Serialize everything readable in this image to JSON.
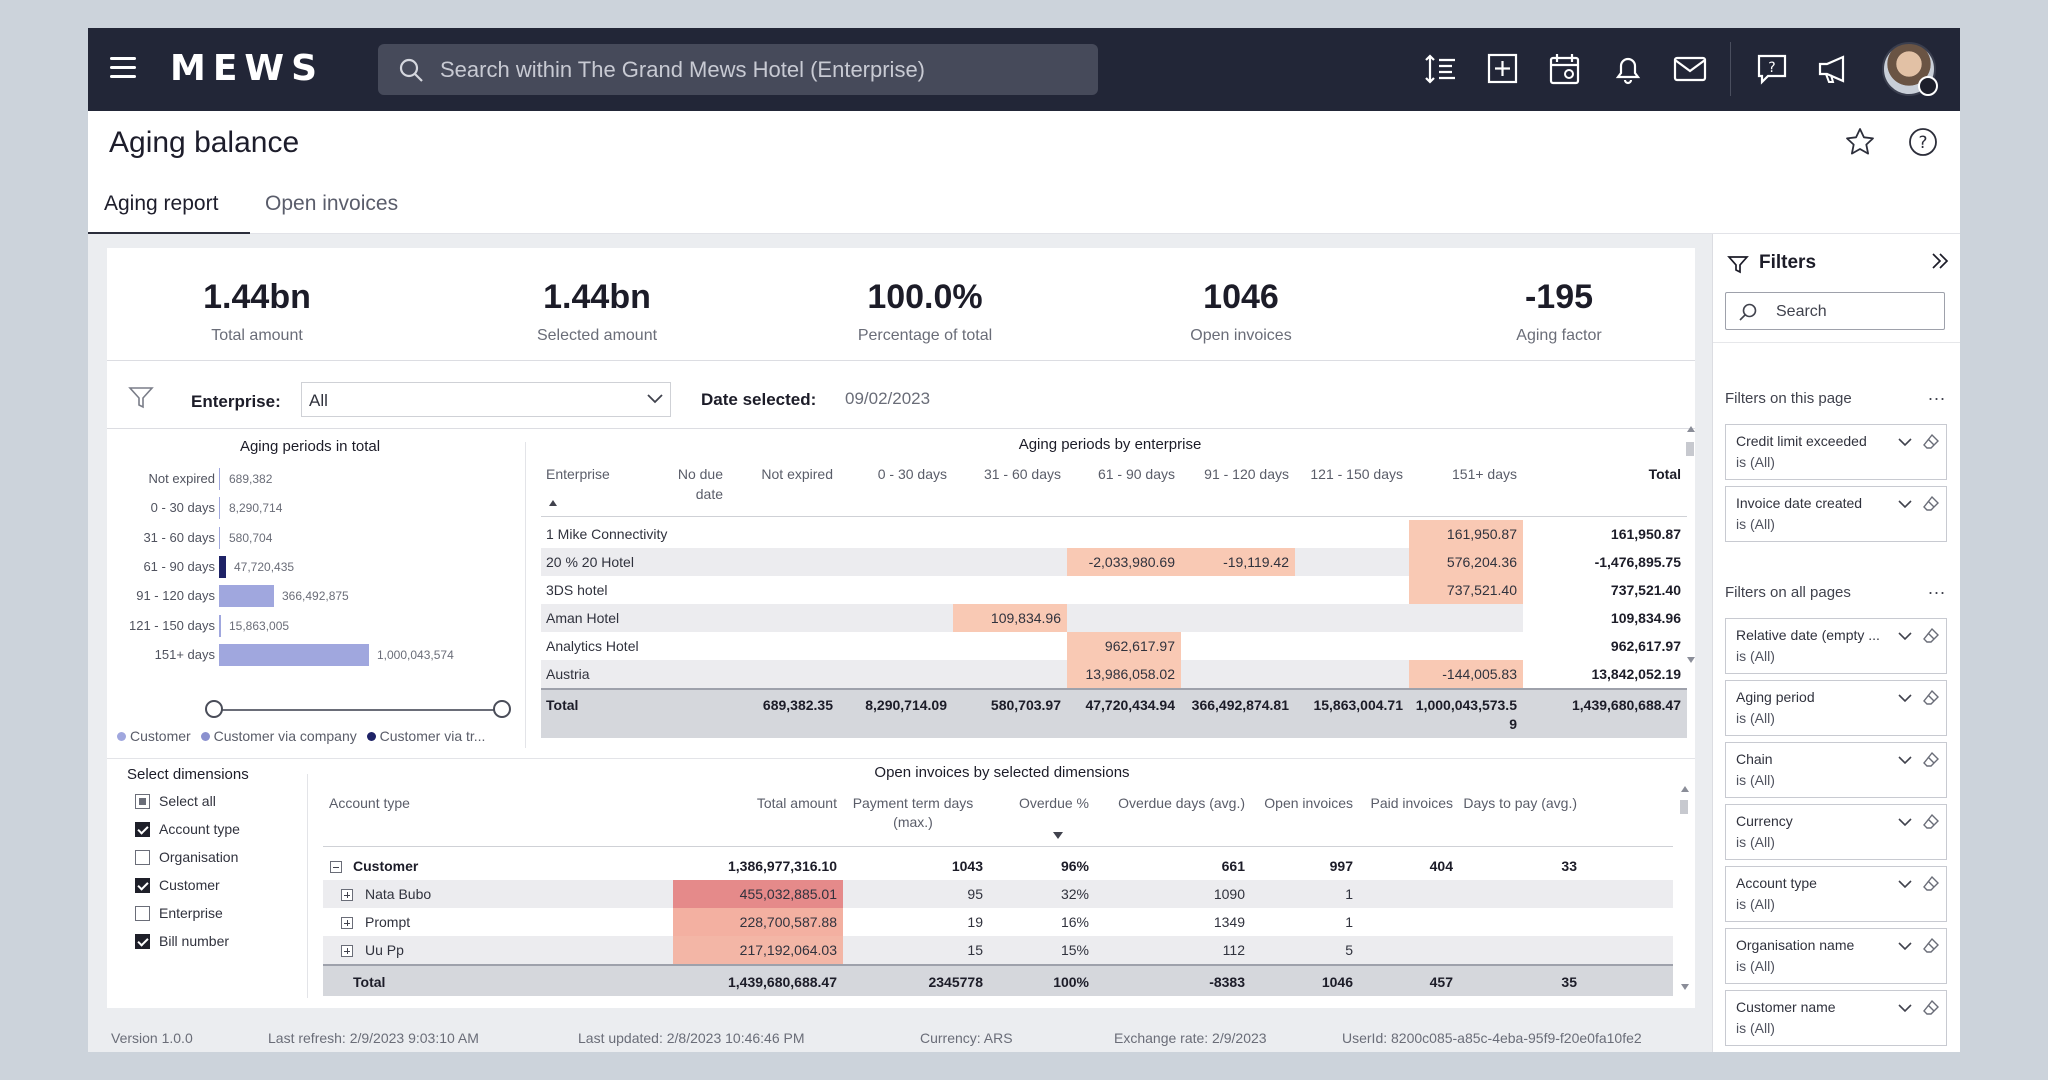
{
  "header": {
    "brand": "MEWS",
    "search_placeholder": "Search within The Grand Mews Hotel (Enterprise)"
  },
  "page": {
    "title": "Aging balance",
    "tabs": [
      "Aging report",
      "Open invoices"
    ],
    "active_tab": "Aging report"
  },
  "kpis": [
    {
      "value": "1.44bn",
      "label": "Total amount"
    },
    {
      "value": "1.44bn",
      "label": "Selected amount"
    },
    {
      "value": "100.0%",
      "label": "Percentage of total"
    },
    {
      "value": "1046",
      "label": "Open invoices"
    },
    {
      "value": "-195",
      "label": "Aging factor"
    }
  ],
  "filter_bar": {
    "enterprise_label": "Enterprise:",
    "enterprise_value": "All",
    "date_label": "Date selected:",
    "date_value": "09/02/2023"
  },
  "aging_total": {
    "title": "Aging periods in total",
    "legend": [
      "Customer",
      "Customer via company",
      "Customer via tr..."
    ],
    "colors": {
      "customer": "#a0a7de",
      "customer_via_company": "#8b91cf",
      "customer_via_tr": "#1e2266"
    }
  },
  "chart_data": {
    "type": "bar",
    "orientation": "horizontal",
    "title": "Aging periods in total",
    "categories": [
      "Not expired",
      "0 - 30 days",
      "31 - 60 days",
      "61 - 90 days",
      "91 - 120 days",
      "121 - 150 days",
      "151+ days"
    ],
    "values": [
      689382,
      8290714,
      580704,
      47720435,
      366492875,
      15863005,
      1000043574
    ],
    "value_labels": [
      "689,382",
      "8,290,714",
      "580,704",
      "47,720,435",
      "366,492,875",
      "15,863,005",
      "1,000,043,574"
    ],
    "bar_colors": [
      "#a0a7de",
      "#a0a7de",
      "#a0a7de",
      "#1e2266",
      "#a0a7de",
      "#a0a7de",
      "#a0a7de"
    ],
    "legend": [
      "Customer",
      "Customer via company",
      "Customer via tr..."
    ],
    "legend_position": "bottom"
  },
  "enterprise_table": {
    "title": "Aging periods by enterprise",
    "columns": [
      "Enterprise",
      "No due\ndate",
      "Not expired",
      "0 - 30 days",
      "31 - 60 days",
      "61 - 90 days",
      "91 - 120 days",
      "121 - 150 days",
      "151+ days",
      "Total"
    ],
    "rows": [
      [
        "1 Mike Connectivity",
        "",
        "",
        "",
        "",
        "",
        "",
        "",
        "161,950.87",
        "161,950.87"
      ],
      [
        "20 % 20 Hotel",
        "",
        "",
        "",
        "",
        "-2,033,980.69",
        "-19,119.42",
        "",
        "576,204.36",
        "-1,476,895.75"
      ],
      [
        "3DS hotel",
        "",
        "",
        "",
        "",
        "",
        "",
        "",
        "737,521.40",
        "737,521.40"
      ],
      [
        "Aman Hotel",
        "",
        "",
        "",
        "109,834.96",
        "",
        "",
        "",
        "",
        "109,834.96"
      ],
      [
        "Analytics Hotel",
        "",
        "",
        "",
        "",
        "962,617.97",
        "",
        "",
        "",
        "962,617.97"
      ],
      [
        "Austria",
        "",
        "",
        "",
        "",
        "13,986,058.02",
        "",
        "",
        "-144,005.83",
        "13,842,052.19"
      ]
    ],
    "totals": [
      "Total",
      "",
      "689,382.35",
      "8,290,714.09",
      "580,703.97",
      "47,720,434.94",
      "366,492,874.81",
      "15,863,004.71",
      "1,000,043,573.59",
      "1,439,680,688.47"
    ],
    "highlight_color": "#f9c9b4"
  },
  "dimensions": {
    "title": "Select dimensions",
    "items": [
      {
        "label": "Select all",
        "state": "partial"
      },
      {
        "label": "Account type",
        "state": "checked"
      },
      {
        "label": "Organisation",
        "state": "unchecked"
      },
      {
        "label": "Customer",
        "state": "checked"
      },
      {
        "label": "Enterprise",
        "state": "unchecked"
      },
      {
        "label": "Bill number",
        "state": "checked"
      }
    ]
  },
  "open_invoices": {
    "title": "Open invoices by selected dimensions",
    "columns": [
      "Account type",
      "Total amount",
      "Payment term days\n(max.)",
      "Overdue %",
      "Overdue days (avg.)",
      "Open invoices",
      "Paid invoices",
      "Days to pay (avg.)"
    ],
    "group": {
      "label": "Customer",
      "values": [
        "1,386,977,316.10",
        "1043",
        "96%",
        "661",
        "997",
        "404",
        "33"
      ]
    },
    "rows": [
      {
        "label": "Nata Bubo",
        "values": [
          "455,032,885.01",
          "95",
          "32%",
          "1090",
          "1",
          "",
          ""
        ],
        "heat": "#e58a8a"
      },
      {
        "label": "Prompt",
        "values": [
          "228,700,587.88",
          "19",
          "16%",
          "1349",
          "1",
          "",
          ""
        ],
        "heat": "#f3b0a1"
      },
      {
        "label": "Uu Pp",
        "values": [
          "217,192,064.03",
          "15",
          "15%",
          "112",
          "5",
          "",
          ""
        ],
        "heat": "#f3b6a6"
      }
    ],
    "totals": [
      "Total",
      "1,439,680,688.47",
      "2345778",
      "100%",
      "-8383",
      "1046",
      "457",
      "35"
    ]
  },
  "footer": {
    "version": "Version 1.0.0",
    "last_refresh": "Last refresh: 2/9/2023 9:03:10 AM",
    "last_updated": "Last updated: 2/8/2023 10:46:46 PM",
    "currency": "Currency: ARS",
    "exchange_rate": "Exchange rate: 2/9/2023",
    "user_id": "UserId: 8200c085-a85c-4eba-95f9-f20e0fa10fe2"
  },
  "filters_pane": {
    "title": "Filters",
    "search_label": "Search",
    "page_section": "Filters on this page",
    "all_section": "Filters on all pages",
    "page_filters": [
      {
        "name": "Credit limit exceeded",
        "value": "is (All)"
      },
      {
        "name": "Invoice date created",
        "value": "is (All)"
      }
    ],
    "all_filters": [
      {
        "name": "Relative date (empty ...",
        "value": "is (All)"
      },
      {
        "name": "Aging period",
        "value": "is (All)"
      },
      {
        "name": "Chain",
        "value": "is (All)"
      },
      {
        "name": "Currency",
        "value": "is (All)"
      },
      {
        "name": "Account type",
        "value": "is (All)"
      },
      {
        "name": "Organisation name",
        "value": "is (All)"
      },
      {
        "name": "Customer name",
        "value": "is (All)"
      }
    ],
    "more_label": "..."
  }
}
